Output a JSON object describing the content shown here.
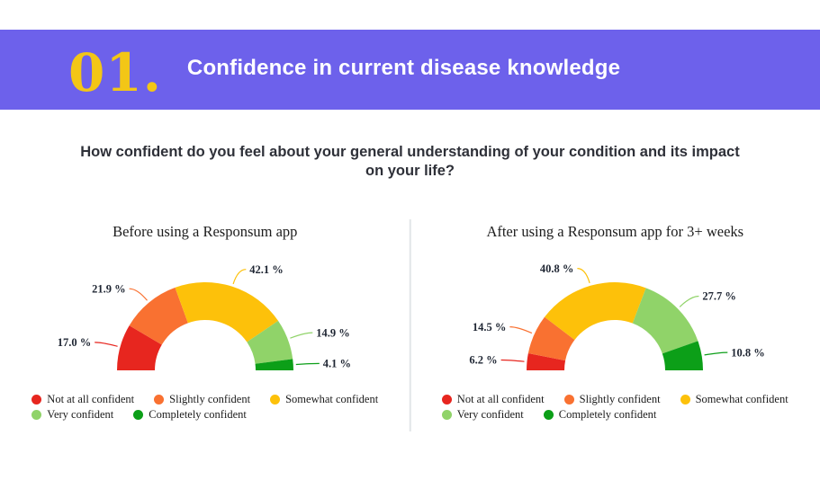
{
  "header": {
    "number": "01.",
    "title": "Confidence in current disease knowledge",
    "background_color": "#6D61EB",
    "number_color": "#F3C616",
    "title_color": "#FFFFFF"
  },
  "question": "How confident do you feel about your general understanding of your condition and its impact on your life?",
  "legend": {
    "items": [
      {
        "label": "Not at all confident",
        "color": "#E7261F"
      },
      {
        "label": "Slightly confident",
        "color": "#F97131"
      },
      {
        "label": "Somewhat confident",
        "color": "#FDC10A"
      },
      {
        "label": "Very confident",
        "color": "#90D369"
      },
      {
        "label": "Completely confident",
        "color": "#0C9F18"
      }
    ]
  },
  "chart_data": [
    {
      "type": "pie",
      "variant": "half-donut-gauge",
      "title": "Before using a Responsum app",
      "categories": [
        "Not at all confident",
        "Slightly confident",
        "Somewhat confident",
        "Very confident",
        "Completely confident"
      ],
      "values": [
        17.0,
        21.9,
        42.1,
        14.9,
        4.1
      ],
      "labels": [
        "17.0 %",
        "21.9 %",
        "42.1 %",
        "14.9 %",
        "4.1 %"
      ],
      "colors": [
        "#E7261F",
        "#F97131",
        "#FDC10A",
        "#90D369",
        "#0C9F18"
      ],
      "span_degrees": 180,
      "inner_radius_ratio": 0.57,
      "legend_position": "bottom"
    },
    {
      "type": "pie",
      "variant": "half-donut-gauge",
      "title": "After using a Responsum app for 3+ weeks",
      "categories": [
        "Not at all confident",
        "Slightly confident",
        "Somewhat confident",
        "Very confident",
        "Completely confident"
      ],
      "values": [
        6.2,
        14.5,
        40.8,
        27.7,
        10.8
      ],
      "labels": [
        "6.2 %",
        "14.5 %",
        "40.8 %",
        "27.7 %",
        "10.8 %"
      ],
      "colors": [
        "#E7261F",
        "#F97131",
        "#FDC10A",
        "#90D369",
        "#0C9F18"
      ],
      "span_degrees": 180,
      "inner_radius_ratio": 0.57,
      "legend_position": "bottom"
    }
  ]
}
